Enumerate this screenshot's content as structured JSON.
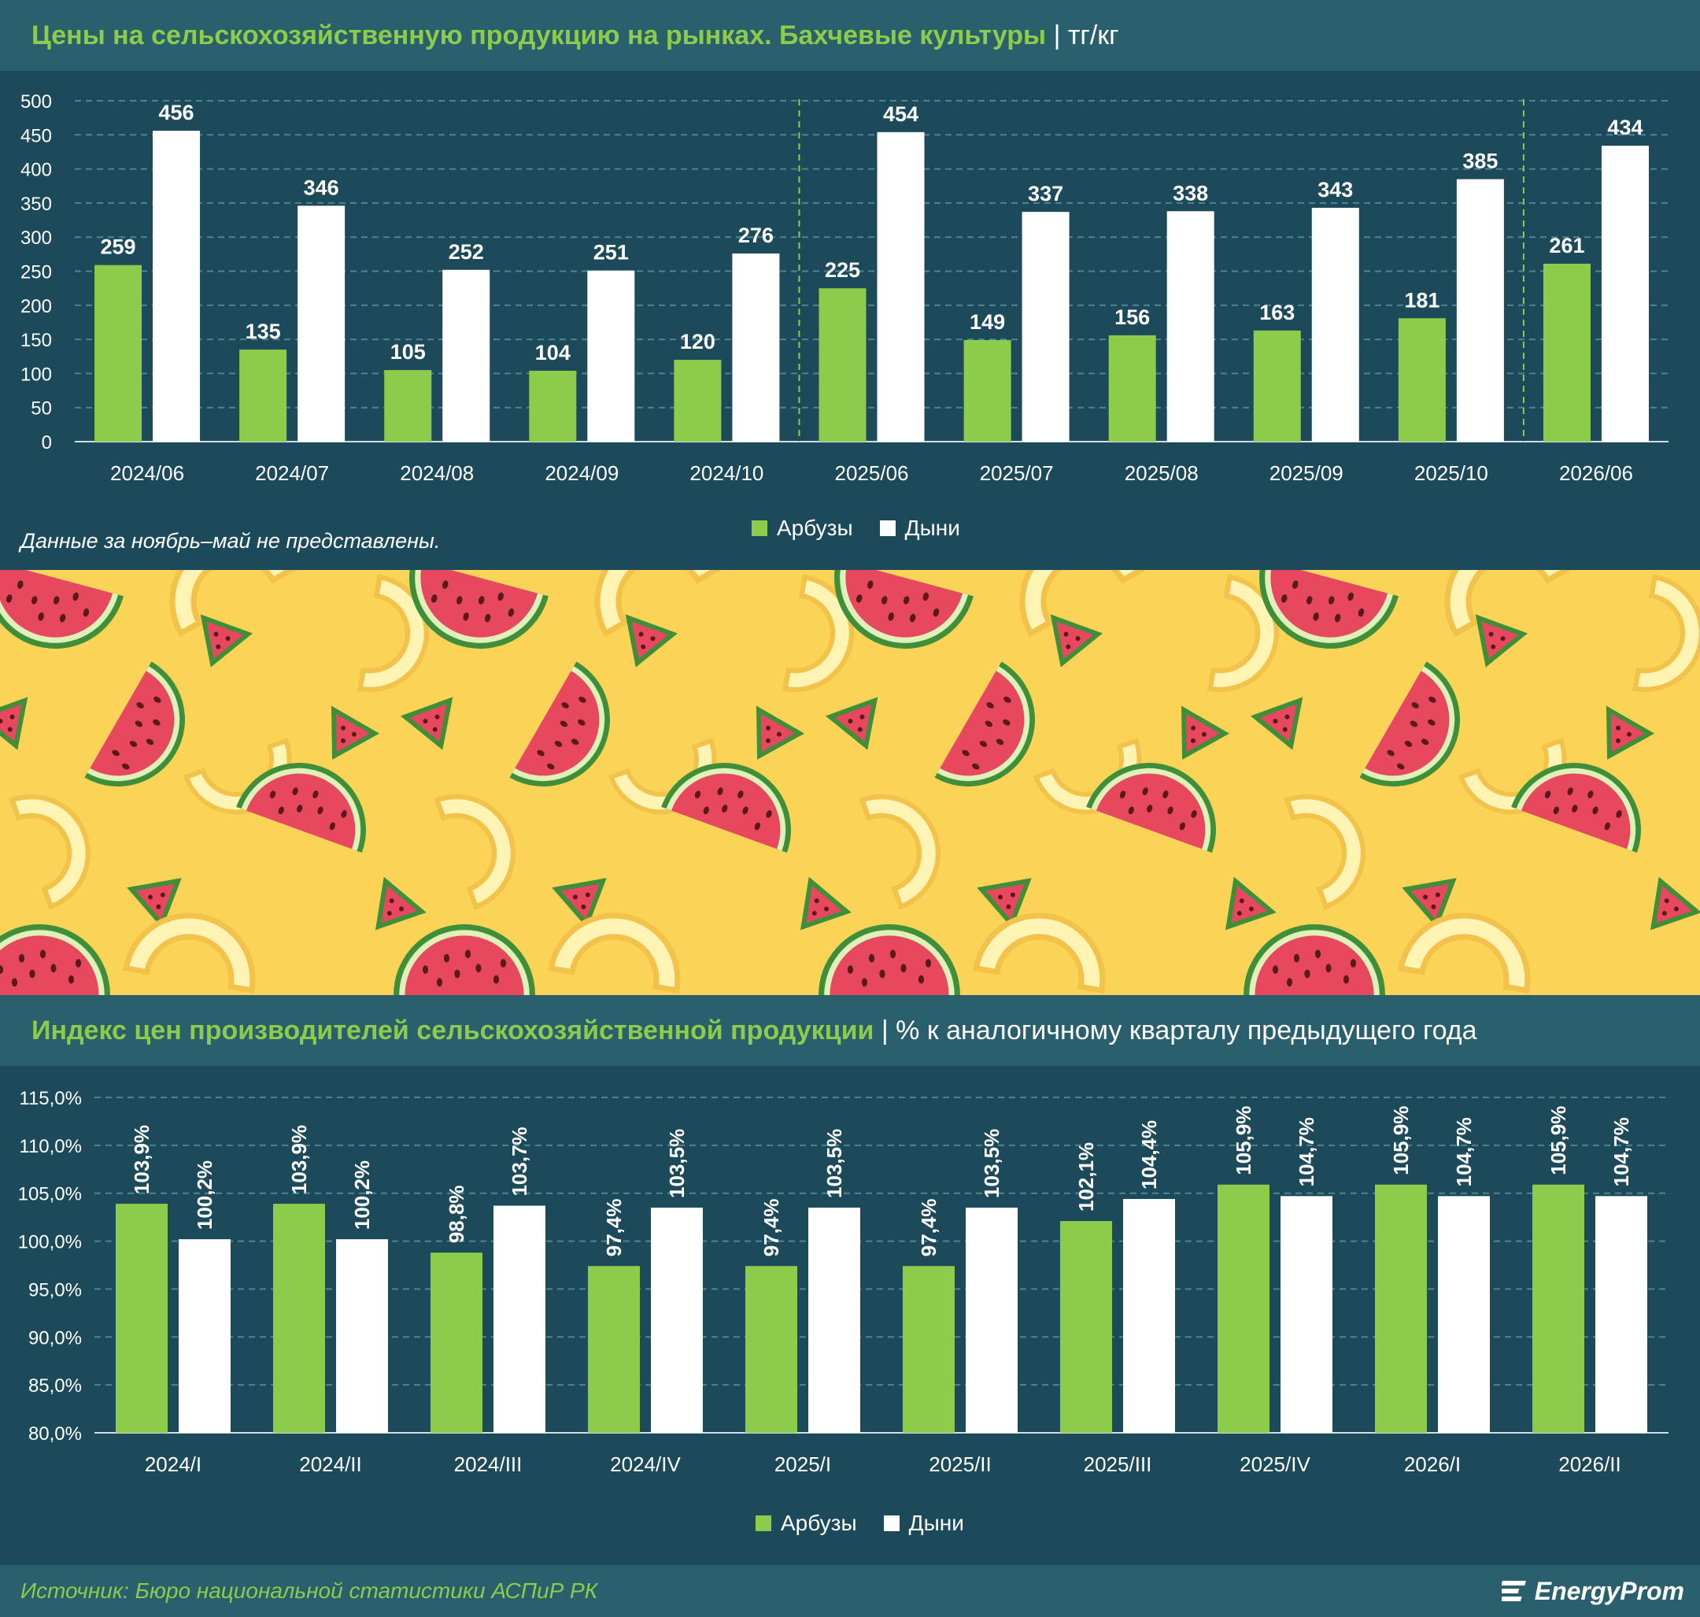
{
  "colors": {
    "watermelon": "#8ccc4a",
    "melon": "#ffffff",
    "background": "#1c4a5a",
    "header": "#2a5f6e"
  },
  "chart1": {
    "title": "Цены на сельскохозяйственную продукцию на рынках. Бахчевые культуры",
    "separator": "|",
    "unit": "тг/кг",
    "note": "Данные за ноябрь–май не представлены."
  },
  "chart2": {
    "title": "Индекс цен производителей сельскохозяйственной продукции",
    "separator": "|",
    "unit": "% к аналогичному кварталу предыдущего года"
  },
  "legend": {
    "watermelon": "Арбузы",
    "melon": "Дыни"
  },
  "footer": {
    "source": "Источник: Бюро национальной статистики АСПиР РК",
    "logo": "EnergyProm",
    "logo_icon": "energyprom-logo-icon"
  },
  "chart_data": [
    {
      "type": "bar",
      "categories": [
        "2024/06",
        "2024/07",
        "2024/08",
        "2024/09",
        "2024/10",
        "2025/06",
        "2025/07",
        "2025/08",
        "2025/09",
        "2025/10",
        "2026/06"
      ],
      "series": [
        {
          "name": "Арбузы",
          "values": [
            259,
            135,
            105,
            104,
            120,
            225,
            149,
            156,
            163,
            181,
            261
          ]
        },
        {
          "name": "Дыни",
          "values": [
            456,
            346,
            252,
            251,
            276,
            454,
            337,
            338,
            343,
            385,
            434
          ]
        }
      ],
      "value_labels": [
        "259",
        "135",
        "105",
        "104",
        "120",
        "225",
        "149",
        "156",
        "163",
        "181",
        "261",
        "456",
        "346",
        "252",
        "251",
        "276",
        "454",
        "337",
        "338",
        "343",
        "385",
        "434"
      ],
      "yticks": [
        "0",
        "50",
        "100",
        "150",
        "200",
        "250",
        "300",
        "350",
        "400",
        "450",
        "500"
      ],
      "ylim": [
        0,
        500
      ],
      "grid": true,
      "legend": "bottom-center"
    },
    {
      "type": "bar",
      "categories": [
        "2024/I",
        "2024/II",
        "2024/III",
        "2024/IV",
        "2025/I",
        "2025/II",
        "2025/III",
        "2025/IV",
        "2026/I",
        "2026/II"
      ],
      "series": [
        {
          "name": "Арбузы",
          "values": [
            103.9,
            103.9,
            98.8,
            97.4,
            97.4,
            97.4,
            102.1,
            105.9,
            105.9,
            105.9
          ]
        },
        {
          "name": "Дыни",
          "values": [
            100.2,
            100.2,
            103.7,
            103.5,
            103.5,
            103.5,
            104.4,
            104.7,
            104.7,
            104.7
          ]
        }
      ],
      "value_labels": [
        "103,9%",
        "103,9%",
        "98,8%",
        "97,4%",
        "97,4%",
        "97,4%",
        "102,1%",
        "105,9%",
        "105,9%",
        "105,9%",
        "100,2%",
        "100,2%",
        "103,7%",
        "103,5%",
        "103,5%",
        "103,5%",
        "104,4%",
        "104,7%",
        "104,7%",
        "104,7%"
      ],
      "yticks": [
        "80,0%",
        "85,0%",
        "90,0%",
        "95,0%",
        "100,0%",
        "105,0%",
        "110,0%",
        "115,0%"
      ],
      "ylim": [
        80,
        115
      ],
      "grid": true,
      "legend": "bottom-center"
    }
  ]
}
